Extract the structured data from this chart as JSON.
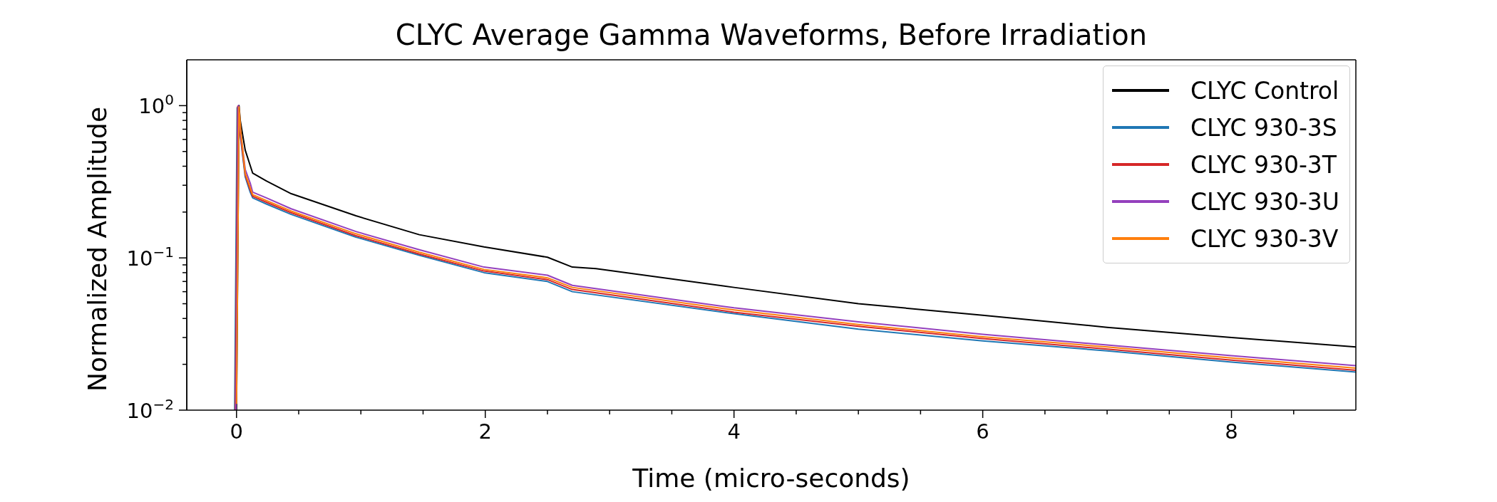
{
  "chart_data": {
    "type": "line",
    "title": "CLYC Average Gamma Waveforms, Before Irradiation",
    "xlabel": "Time (micro-seconds)",
    "ylabel": "Normalized Amplitude",
    "log": "y",
    "legend": "top right",
    "marker": "none",
    "line_style": "solid",
    "xlim": [
      -0.4,
      9
    ],
    "ylim": [
      0.01,
      2
    ],
    "xticks": [
      0,
      {
        "value": 0.5,
        "label": null
      },
      {
        "value": 1,
        "label": null
      },
      {
        "value": 1.5,
        "label": null
      },
      2,
      {
        "value": 2.5,
        "label": null
      },
      {
        "value": 3,
        "label": null
      },
      {
        "value": 3.5,
        "label": null
      },
      4,
      {
        "value": 4.5,
        "label": null
      },
      {
        "value": 5,
        "label": null
      },
      {
        "value": 5.5,
        "label": null
      },
      6,
      {
        "value": 6.5,
        "label": null
      },
      {
        "value": 7,
        "label": null
      },
      {
        "value": 7.5,
        "label": null
      },
      8,
      {
        "value": 8.5,
        "label": null
      }
    ],
    "yticks": [
      {
        "value": 0.01,
        "label": "10$^{−2}$"
      },
      {
        "value": 0.02,
        "label": null
      },
      {
        "value": 0.03,
        "label": null
      },
      {
        "value": 0.04,
        "label": null
      },
      {
        "value": 0.05,
        "label": null
      },
      {
        "value": 0.06,
        "label": null
      },
      {
        "value": 0.07,
        "label": null
      },
      {
        "value": 0.08,
        "label": null
      },
      {
        "value": 0.09,
        "label": null
      },
      {
        "value": 0.1,
        "label": "10$^{−1}$"
      },
      {
        "value": 0.2,
        "label": null
      },
      {
        "value": 0.3,
        "label": null
      },
      {
        "value": 0.4,
        "label": null
      },
      {
        "value": 0.5,
        "label": null
      },
      {
        "value": 0.6,
        "label": null
      },
      {
        "value": 0.7,
        "label": null
      },
      {
        "value": 0.8,
        "label": null
      },
      {
        "value": 0.9,
        "label": null
      },
      {
        "value": 1,
        "label": "10$^{0}$"
      }
    ],
    "series": [
      {
        "name": "CLYC Control",
        "color": "#000000",
        "x": [
          0,
          0.02,
          0.03,
          0.07,
          0.13,
          0.24,
          0.44,
          0.96,
          1.47,
          1.99,
          2.5,
          2.7,
          2.89,
          4,
          5,
          6,
          7,
          8,
          9
        ],
        "values": [
          0.01,
          1,
          0.8,
          0.51,
          0.36,
          0.32,
          0.264,
          0.189,
          0.142,
          0.118,
          0.101,
          0.087,
          0.085,
          0.064,
          0.05,
          0.042,
          0.035,
          0.03,
          0.026
        ]
      },
      {
        "name": "CLYC 930-3S",
        "color": "#1f77b4",
        "x": [
          -0.015,
          0.005,
          0.03,
          0.07,
          0.11,
          0.13,
          0.24,
          0.44,
          0.96,
          1.47,
          1.99,
          2.5,
          2.7,
          4,
          5,
          6,
          7,
          8,
          9
        ],
        "values": [
          0.01,
          0.97,
          0.64,
          0.34,
          0.27,
          0.248,
          0.226,
          0.193,
          0.137,
          0.104,
          0.08,
          0.07,
          0.06,
          0.043,
          0.034,
          0.0285,
          0.0245,
          0.0207,
          0.0178
        ]
      },
      {
        "name": "CLYC 930-3T",
        "color": "#d62728",
        "x": [
          -0.01,
          0.01,
          0.03,
          0.07,
          0.11,
          0.13,
          0.24,
          0.44,
          0.96,
          1.47,
          1.99,
          2.5,
          2.7,
          4,
          5,
          6,
          7,
          8,
          9
        ],
        "values": [
          0.01,
          0.99,
          0.66,
          0.35,
          0.28,
          0.254,
          0.232,
          0.198,
          0.14,
          0.106,
          0.082,
          0.072,
          0.062,
          0.044,
          0.0355,
          0.0295,
          0.0252,
          0.0213,
          0.0183
        ]
      },
      {
        "name": "CLYC 930-3U",
        "color": "#9440bd",
        "x": [
          -0.005,
          0.015,
          0.03,
          0.07,
          0.11,
          0.13,
          0.24,
          0.44,
          0.96,
          1.47,
          1.99,
          2.5,
          2.7,
          4,
          5,
          6,
          7,
          8,
          9
        ],
        "values": [
          0.01,
          1,
          0.7,
          0.38,
          0.31,
          0.27,
          0.248,
          0.21,
          0.149,
          0.113,
          0.087,
          0.077,
          0.066,
          0.047,
          0.038,
          0.0315,
          0.0268,
          0.0228,
          0.0196
        ]
      },
      {
        "name": "CLYC 930-3V",
        "color": "#ff7f0e",
        "x": [
          0,
          0.02,
          0.035,
          0.07,
          0.11,
          0.13,
          0.24,
          0.44,
          0.96,
          1.47,
          1.99,
          2.5,
          2.7,
          4,
          5,
          6,
          7,
          8,
          9
        ],
        "values": [
          0.011,
          0.98,
          0.67,
          0.36,
          0.29,
          0.26,
          0.238,
          0.203,
          0.144,
          0.109,
          0.084,
          0.074,
          0.064,
          0.0455,
          0.0365,
          0.0303,
          0.026,
          0.022,
          0.0189
        ]
      }
    ]
  }
}
